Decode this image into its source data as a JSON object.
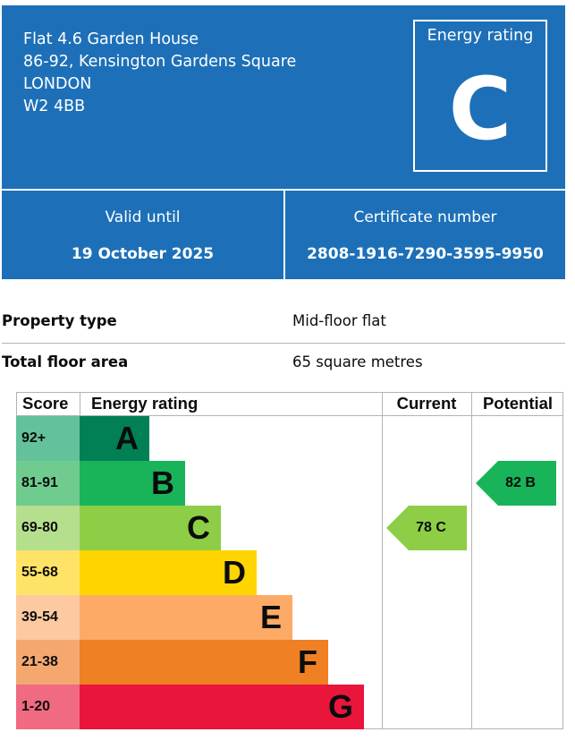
{
  "address": {
    "line1": "Flat 4.6 Garden House",
    "line2": "86-92, Kensington Gardens Square",
    "line3": "LONDON",
    "line4": "W2 4BB"
  },
  "energy_rating": {
    "label": "Energy rating",
    "value": "C"
  },
  "valid_until": {
    "label": "Valid until",
    "value": "19 October 2025"
  },
  "certificate_number": {
    "label": "Certificate number",
    "value": "2808-1916-7290-3595-9950"
  },
  "property": {
    "type_label": "Property type",
    "type_value": "Mid-floor flat",
    "area_label": "Total floor area",
    "area_value": "65 square metres"
  },
  "chart_headers": {
    "score": "Score",
    "rating": "Energy rating",
    "current": "Current",
    "potential": "Potential"
  },
  "bands": [
    {
      "score": "92+",
      "letter": "A",
      "color": "#008054",
      "score_bg": "#63c29c"
    },
    {
      "score": "81-91",
      "letter": "B",
      "color": "#19b459",
      "score_bg": "#6fcb8e"
    },
    {
      "score": "69-80",
      "letter": "C",
      "color": "#8dce46",
      "score_bg": "#b6df8d"
    },
    {
      "score": "55-68",
      "letter": "D",
      "color": "#ffd500",
      "score_bg": "#ffe366"
    },
    {
      "score": "39-54",
      "letter": "E",
      "color": "#fcaa65",
      "score_bg": "#fdc9a0"
    },
    {
      "score": "21-38",
      "letter": "F",
      "color": "#ef8023",
      "score_bg": "#f4a870"
    },
    {
      "score": "1-20",
      "letter": "G",
      "color": "#e9153b",
      "score_bg": "#f06a82"
    }
  ],
  "current": {
    "text": "78  C",
    "band": "C",
    "color": "#8dce46"
  },
  "potential": {
    "text": "82  B",
    "band": "B",
    "color": "#19b459"
  }
}
